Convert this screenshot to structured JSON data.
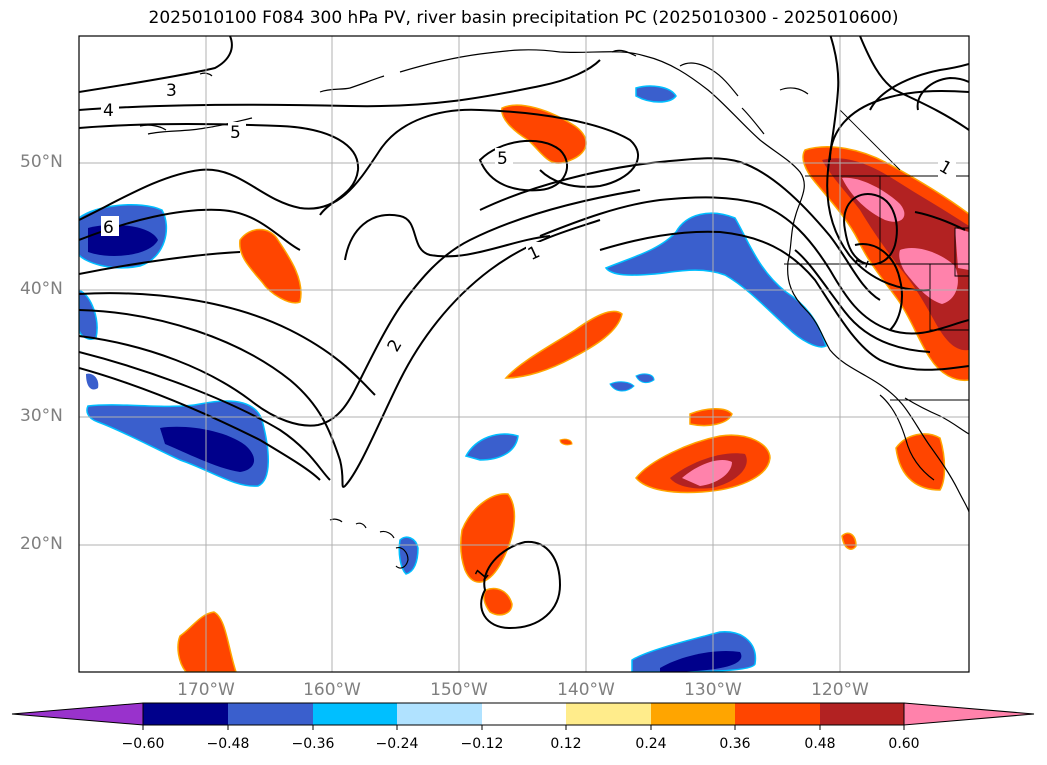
{
  "title": "2025010100 F084 300 hPa PV, river basin precipitation PC (2025010300 - 2025010600)",
  "lat_labels": [
    {
      "text": "50°N",
      "value": 50
    },
    {
      "text": "40°N",
      "value": 40
    },
    {
      "text": "30°N",
      "value": 30
    },
    {
      "text": "20°N",
      "value": 20
    }
  ],
  "lon_labels": [
    {
      "text": "170°W",
      "value": -170
    },
    {
      "text": "160°W",
      "value": -160
    },
    {
      "text": "150°W",
      "value": -150
    },
    {
      "text": "140°W",
      "value": -140
    },
    {
      "text": "130°W",
      "value": -130
    },
    {
      "text": "120°W",
      "value": -120
    }
  ],
  "contour_labels": [
    "3",
    "4",
    "5",
    "5",
    "6",
    "1",
    "2",
    "1",
    "1",
    "1"
  ],
  "colorbar": {
    "ticks": [
      "−0.60",
      "−0.48",
      "−0.36",
      "−0.24",
      "−0.12",
      "0.12",
      "0.24",
      "0.36",
      "0.48",
      "0.60"
    ],
    "colors": [
      "#9932cc",
      "#00008b",
      "#3a5fcd",
      "#00bfff",
      "#b0e2ff",
      "#ffffff",
      "#ffec8b",
      "#ffa500",
      "#ff4500",
      "#b22222",
      "#ff82ab"
    ]
  },
  "colors": {
    "ocean": "#ffffff",
    "contour": "#000000",
    "grid": "#b0b0b0"
  }
}
